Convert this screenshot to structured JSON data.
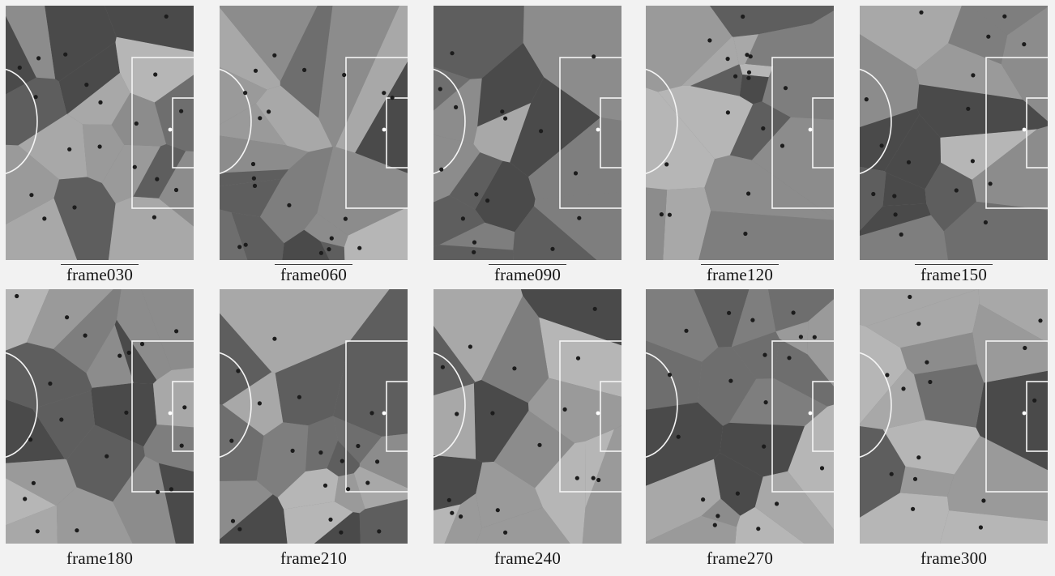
{
  "figure": {
    "frames": [
      {
        "label": "frame030"
      },
      {
        "label": "frame060"
      },
      {
        "label": "frame090"
      },
      {
        "label": "frame120"
      },
      {
        "label": "frame150"
      },
      {
        "label": "frame180"
      },
      {
        "label": "frame210"
      },
      {
        "label": "frame240"
      },
      {
        "label": "frame270"
      },
      {
        "label": "frame300"
      }
    ]
  },
  "colors": {
    "page_background": "#f2f2f2",
    "pitch_lines": "#f5f5f5",
    "player_dot": "#1c1c1c",
    "ball": "#ffffff",
    "region_shades": [
      "#4a4a4a",
      "#5e5e5e",
      "#6e6e6e",
      "#7e7e7e",
      "#8c8c8c",
      "#9a9a9a",
      "#a8a8a8",
      "#b6b6b6"
    ]
  }
}
